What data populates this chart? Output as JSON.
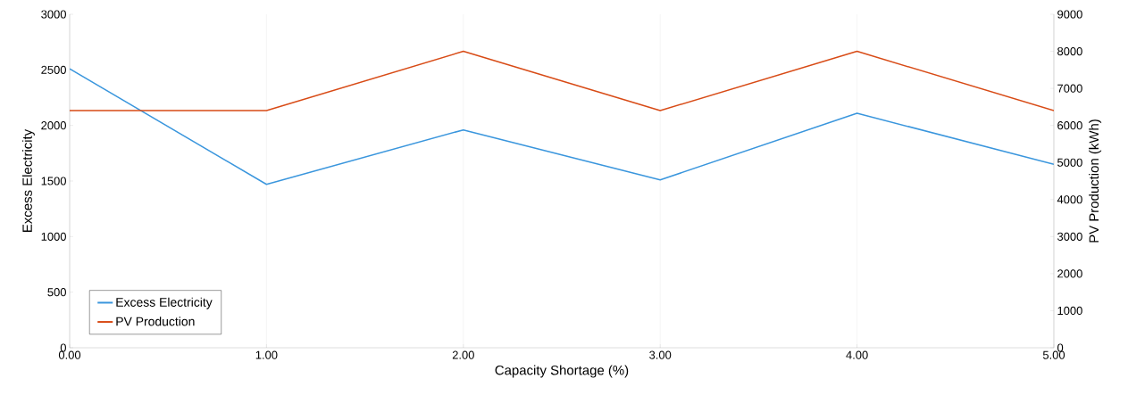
{
  "chart_data": {
    "type": "line",
    "xlabel": "Capacity Shortage (%)",
    "ylabel": "Excess Electricity",
    "y2label": "PV Production (kWh)",
    "x": [
      0,
      1,
      2,
      3,
      4,
      5
    ],
    "series": [
      {
        "name": "Excess Electricity",
        "color": "#3a96dd",
        "values": [
          2510,
          1470,
          1960,
          1510,
          2110,
          1650
        ]
      },
      {
        "name": "PV Production",
        "color": "#d84b16",
        "axis": "y2",
        "values": [
          6400,
          6400,
          8000,
          6400,
          8000,
          6400
        ]
      }
    ],
    "xlim": [
      0,
      5
    ],
    "xticks": [
      {
        "value": 0,
        "label": "0.00"
      },
      {
        "value": 1,
        "label": "1.00"
      },
      {
        "value": 2,
        "label": "2.00"
      },
      {
        "value": 3,
        "label": "3.00"
      },
      {
        "value": 4,
        "label": "4.00"
      },
      {
        "value": 5,
        "label": "5.00"
      }
    ],
    "ylim": [
      0,
      3000
    ],
    "yticks": [
      0,
      500,
      1000,
      1500,
      2000,
      2500,
      3000
    ],
    "y2lim": [
      0,
      9000
    ],
    "y2ticks": [
      0,
      1000,
      2000,
      3000,
      4000,
      5000,
      6000,
      7000,
      8000,
      9000
    ],
    "grid": "x",
    "legend": "bottom left",
    "marker": "none",
    "line_style": "solid"
  }
}
